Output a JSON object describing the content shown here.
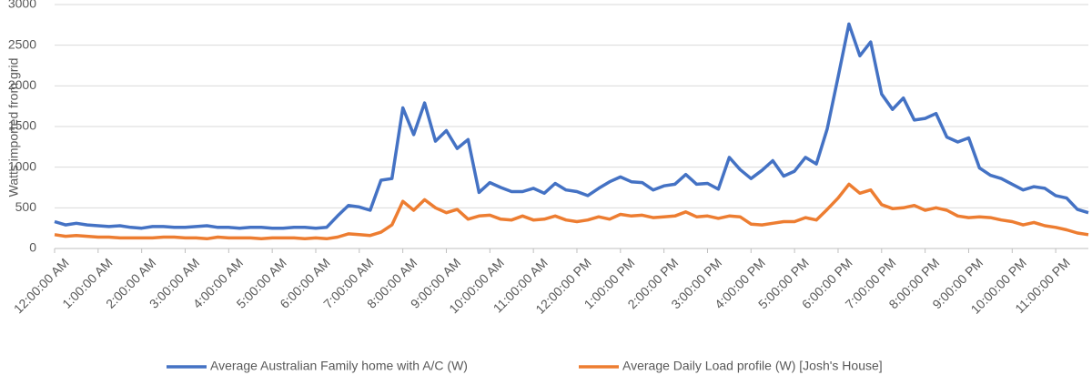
{
  "chart_data": {
    "type": "line",
    "y_label": "Watts imported from grid",
    "x": [
      0,
      0.25,
      0.5,
      0.75,
      1,
      1.25,
      1.5,
      1.75,
      2,
      2.25,
      2.5,
      2.75,
      3,
      3.25,
      3.5,
      3.75,
      4,
      4.25,
      4.5,
      4.75,
      5,
      5.25,
      5.5,
      5.75,
      6,
      6.25,
      6.5,
      6.75,
      7,
      7.25,
      7.5,
      7.75,
      8,
      8.25,
      8.5,
      8.75,
      9,
      9.25,
      9.5,
      9.75,
      10,
      10.25,
      10.5,
      10.75,
      11,
      11.25,
      11.5,
      11.75,
      12,
      12.25,
      12.5,
      12.75,
      13,
      13.25,
      13.5,
      13.75,
      14,
      14.25,
      14.5,
      14.75,
      15,
      15.25,
      15.5,
      15.75,
      16,
      16.25,
      16.5,
      16.75,
      17,
      17.25,
      17.5,
      17.75,
      18,
      18.25,
      18.5,
      18.75,
      19,
      19.25,
      19.5,
      19.75,
      20,
      20.25,
      20.5,
      20.75,
      21,
      21.25,
      21.5,
      21.75,
      22,
      22.25,
      22.5,
      22.75,
      23,
      23.25,
      23.5,
      23.75
    ],
    "series": [
      {
        "name": "Average Australian Family home with A/C (W)",
        "color": "#4472c4",
        "values": [
          330,
          290,
          310,
          290,
          280,
          270,
          280,
          260,
          250,
          270,
          270,
          260,
          260,
          270,
          280,
          260,
          260,
          250,
          260,
          260,
          250,
          250,
          260,
          260,
          250,
          260,
          400,
          530,
          510,
          470,
          840,
          860,
          1730,
          1400,
          1790,
          1320,
          1450,
          1230,
          1340,
          690,
          810,
          750,
          700,
          700,
          740,
          680,
          800,
          720,
          700,
          650,
          740,
          820,
          880,
          820,
          810,
          720,
          770,
          790,
          910,
          790,
          800,
          730,
          1120,
          970,
          860,
          960,
          1080,
          890,
          950,
          1120,
          1040,
          1470,
          2110,
          2760,
          2370,
          2540,
          1900,
          1710,
          1850,
          1580,
          1600,
          1660,
          1370,
          1310,
          1360,
          990,
          900,
          860,
          790,
          720,
          760,
          740,
          650,
          620,
          480,
          440
        ]
      },
      {
        "name": "Average Daily Load profile (W) [Josh's House]",
        "color": "#ed7d31",
        "values": [
          170,
          150,
          160,
          150,
          140,
          140,
          130,
          130,
          130,
          130,
          140,
          140,
          130,
          130,
          120,
          140,
          130,
          130,
          130,
          120,
          130,
          130,
          130,
          120,
          130,
          120,
          140,
          180,
          170,
          160,
          200,
          290,
          580,
          470,
          600,
          500,
          440,
          480,
          360,
          400,
          410,
          360,
          350,
          400,
          350,
          360,
          400,
          350,
          330,
          350,
          390,
          360,
          420,
          400,
          410,
          380,
          390,
          400,
          450,
          390,
          400,
          370,
          400,
          390,
          300,
          290,
          310,
          330,
          330,
          380,
          350,
          480,
          620,
          790,
          680,
          720,
          540,
          490,
          500,
          530,
          470,
          500,
          470,
          400,
          380,
          390,
          380,
          350,
          330,
          290,
          320,
          280,
          260,
          230,
          190,
          170
        ]
      }
    ],
    "xlim": [
      0,
      23.75
    ],
    "xticks": [
      {
        "value": 0,
        "label": "12:00:00 AM"
      },
      {
        "value": 1,
        "label": "1:00:00 AM"
      },
      {
        "value": 2,
        "label": "2:00:00 AM"
      },
      {
        "value": 3,
        "label": "3:00:00 AM"
      },
      {
        "value": 4,
        "label": "4:00:00 AM"
      },
      {
        "value": 5,
        "label": "5:00:00 AM"
      },
      {
        "value": 6,
        "label": "6:00:00 AM"
      },
      {
        "value": 7,
        "label": "7:00:00 AM"
      },
      {
        "value": 8,
        "label": "8:00:00 AM"
      },
      {
        "value": 9,
        "label": "9:00:00 AM"
      },
      {
        "value": 10,
        "label": "10:00:00 AM"
      },
      {
        "value": 11,
        "label": "11:00:00 AM"
      },
      {
        "value": 12,
        "label": "12:00:00 PM"
      },
      {
        "value": 13,
        "label": "1:00:00 PM"
      },
      {
        "value": 14,
        "label": "2:00:00 PM"
      },
      {
        "value": 15,
        "label": "3:00:00 PM"
      },
      {
        "value": 16,
        "label": "4:00:00 PM"
      },
      {
        "value": 17,
        "label": "5:00:00 PM"
      },
      {
        "value": 18,
        "label": "6:00:00 PM"
      },
      {
        "value": 19,
        "label": "7:00:00 PM"
      },
      {
        "value": 20,
        "label": "8:00:00 PM"
      },
      {
        "value": 21,
        "label": "9:00:00 PM"
      },
      {
        "value": 22,
        "label": "10:00:00 PM"
      },
      {
        "value": 23,
        "label": "11:00:00 PM"
      }
    ],
    "ylim": [
      0,
      3000
    ],
    "yticks": [
      0,
      500,
      1000,
      1500,
      2000,
      2500,
      3000
    ],
    "grid": true,
    "legend": "bottom"
  }
}
